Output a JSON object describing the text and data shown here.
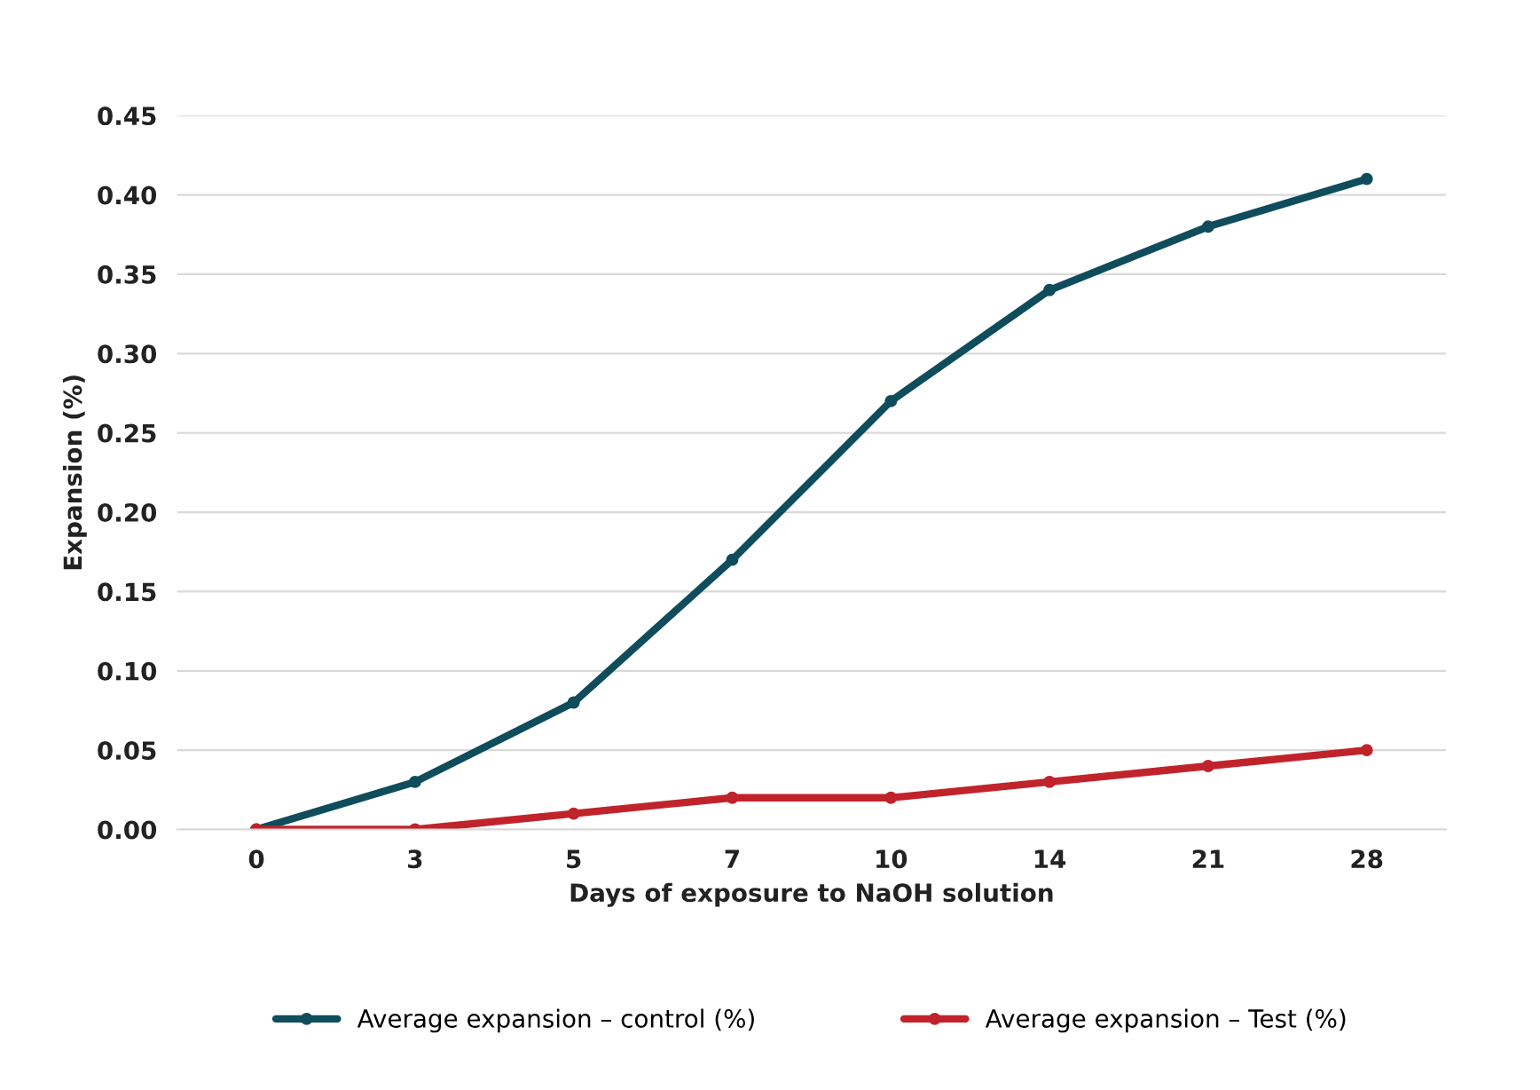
{
  "chart_data": {
    "type": "line",
    "xlabel": "Days of exposure to NaOH solution",
    "ylabel": "Expansion (%)",
    "categories": [
      "0",
      "3",
      "5",
      "7",
      "10",
      "14",
      "21",
      "28"
    ],
    "series": [
      {
        "name": "Average expansion – control (%)",
        "color": "#0f4c5c",
        "values": [
          0,
          0.03,
          0.08,
          0.17,
          0.27,
          0.34,
          0.38,
          0.41
        ]
      },
      {
        "name": "Average expansion – Test (%)",
        "color": "#c1232b",
        "values": [
          0,
          0,
          0.01,
          0.02,
          0.02,
          0.03,
          0.04,
          0.05
        ]
      }
    ],
    "ylim": [
      0,
      0.45
    ],
    "yticks": [
      {
        "value": 0,
        "label": "0.00"
      },
      {
        "value": 0.05,
        "label": "0.05"
      },
      {
        "value": 0.1,
        "label": "0.10"
      },
      {
        "value": 0.15,
        "label": "0.15"
      },
      {
        "value": 0.2,
        "label": "0.20"
      },
      {
        "value": 0.25,
        "label": "0.25"
      },
      {
        "value": 0.3,
        "label": "0.30"
      },
      {
        "value": 0.35,
        "label": "0.35"
      },
      {
        "value": 0.4,
        "label": "0.40"
      },
      {
        "value": 0.45,
        "label": "0.45"
      }
    ],
    "grid": "y",
    "legend": "bottom",
    "marker": "circle",
    "line_style": "solid"
  }
}
